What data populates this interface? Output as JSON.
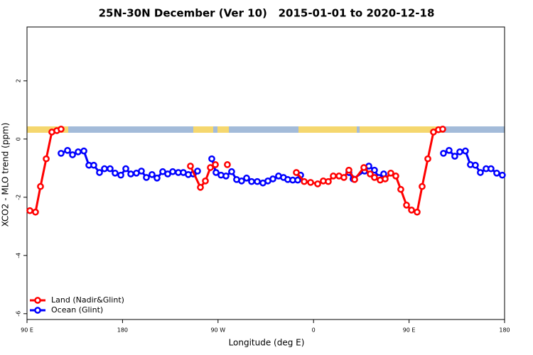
{
  "chart_data": {
    "type": "line",
    "title": "25N-30N December (Ver 10)   2015-01-01 to 2020-12-18",
    "xlabel": "Longitude (deg E)",
    "ylabel": "XCO2 - MLO trend (ppm)",
    "xlim": [
      90,
      540
    ],
    "ylim": [
      -6.2,
      3.85
    ],
    "xticks": [
      {
        "value": 90,
        "label": "90 E"
      },
      180,
      {
        "value": 270,
        "label": "90 W"
      },
      {
        "value": 360,
        "label": "0"
      },
      {
        "value": 450,
        "label": "90 E"
      },
      {
        "value": 540,
        "label": "180"
      }
    ],
    "yticks": [
      -6,
      -4,
      -2,
      0,
      2
    ],
    "legend": "bottom-left",
    "series": [
      {
        "name": "Ocean (Glint)",
        "color": "#0000ff",
        "x": [
          122.1,
          128.2,
          132.9,
          138.2,
          143.6,
          148.3,
          152.9,
          158.3,
          163.0,
          168.3,
          173.0,
          178.4,
          183.1,
          187.8,
          193.1,
          197.8,
          202.5,
          207.8,
          212.5,
          217.9,
          222.6,
          227.3,
          232.6,
          237.3,
          242.0,
          246.7,
          250.7,
          255,
          264.1,
          268.1,
          272.8,
          277.5,
          282.8,
          287.5,
          292.2,
          296.9,
          301.6,
          307.0,
          312.3,
          317.0,
          321.7,
          327.0,
          331.7,
          335.7,
          340.4,
          345.1,
          347.8,
          370,
          393.3,
          397.3,
          408.1,
          412.1,
          417.4,
          421.5,
          426.1,
          450,
          482.4,
          487.7,
          493.1,
          497.8,
          503.1,
          507.8,
          512.5,
          517.2,
          522.6,
          527.2,
          532.6,
          537.9
        ],
        "values": [
          -0.49,
          -0.39,
          -0.54,
          -0.44,
          -0.41,
          -0.9,
          -0.9,
          -1.15,
          -1.02,
          -1.02,
          -1.17,
          -1.24,
          -1.02,
          -1.2,
          -1.17,
          -1.1,
          -1.32,
          -1.22,
          -1.34,
          -1.12,
          -1.2,
          -1.12,
          -1.15,
          -1.15,
          -1.22,
          -1.2,
          -1.1,
          null,
          -0.68,
          -1.15,
          -1.24,
          -1.27,
          -1.12,
          -1.39,
          -1.44,
          -1.34,
          -1.46,
          -1.46,
          -1.51,
          -1.44,
          -1.37,
          -1.27,
          -1.32,
          -1.39,
          -1.41,
          -1.41,
          -1.24,
          null,
          -1.15,
          -1.37,
          -1.1,
          -0.93,
          -1.07,
          -1.32,
          -1.2,
          null,
          -0.49,
          -0.39,
          -0.59,
          -0.44,
          -0.41,
          -0.88,
          -0.9,
          -1.15,
          -1.02,
          -1.02,
          -1.17,
          -1.24
        ]
      },
      {
        "name": "Land (Nadir&Glint)",
        "color": "#ff0000",
        "x": [
          92.7,
          98.0,
          102.7,
          108.1,
          113.4,
          118.1,
          122.1,
          190,
          244.0,
          253.4,
          258.1,
          262.8,
          267.5,
          270,
          278.8,
          330,
          343.8,
          351.2,
          357.2,
          363.9,
          369.2,
          373.9,
          378.6,
          384.0,
          388.6,
          393.3,
          398.7,
          407.4,
          413.4,
          417.4,
          422.8,
          427.5,
          432.8,
          437.5,
          442.2,
          447.6,
          452.3,
          457.6,
          462.3,
          467.7,
          473.0,
          477.7,
          481.7
        ],
        "values": [
          -2.46,
          -2.51,
          -1.63,
          -0.68,
          0.24,
          0.29,
          0.34,
          null,
          -0.93,
          -1.66,
          -1.44,
          -0.98,
          -0.88,
          null,
          -0.88,
          null,
          -1.15,
          -1.46,
          -1.49,
          -1.54,
          -1.44,
          -1.46,
          -1.27,
          -1.27,
          -1.32,
          -1.07,
          -1.39,
          -0.98,
          -1.2,
          -1.32,
          -1.41,
          -1.37,
          -1.17,
          -1.27,
          -1.73,
          -2.27,
          -2.44,
          -2.51,
          -1.63,
          -0.68,
          0.24,
          0.32,
          0.34
        ]
      }
    ]
  }
}
